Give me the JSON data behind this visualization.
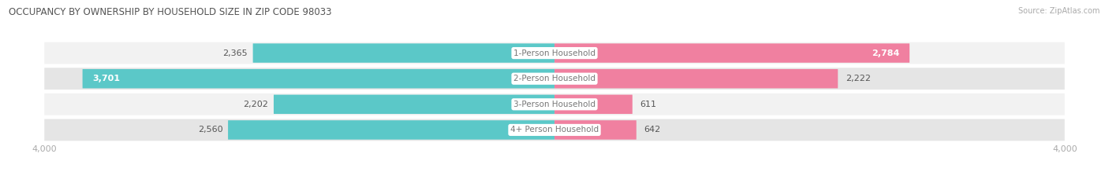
{
  "title": "OCCUPANCY BY OWNERSHIP BY HOUSEHOLD SIZE IN ZIP CODE 98033",
  "source": "Source: ZipAtlas.com",
  "categories": [
    "1-Person Household",
    "2-Person Household",
    "3-Person Household",
    "4+ Person Household"
  ],
  "owner_values": [
    2365,
    3701,
    2202,
    2560
  ],
  "renter_values": [
    2784,
    2222,
    611,
    642
  ],
  "max_val": 4000,
  "owner_color": "#5BC8C8",
  "renter_color": "#F080A0",
  "row_bg_light": "#F2F2F2",
  "row_bg_dark": "#E5E5E5",
  "row_border_color": "#DDDDDD",
  "title_color": "#555555",
  "source_color": "#AAAAAA",
  "value_color_dark": "#555555",
  "value_color_light": "#FFFFFF",
  "category_label_color": "#777777",
  "tick_label_color": "#AAAAAA",
  "figsize": [
    14.06,
    2.33
  ],
  "dpi": 100
}
